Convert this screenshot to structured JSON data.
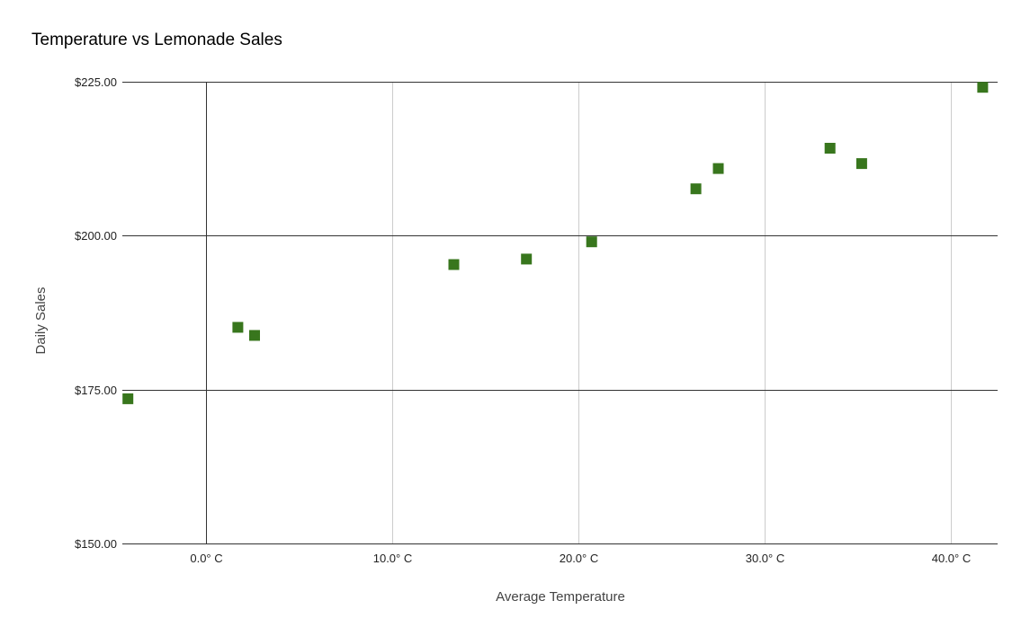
{
  "chart_data": {
    "type": "scatter",
    "title": "Temperature vs Lemonade Sales",
    "xlabel": "Average Temperature",
    "ylabel": "Daily Sales",
    "xlim": [
      -4.5,
      42.5
    ],
    "ylim": [
      150,
      225
    ],
    "x_ticks": [
      {
        "value": 0,
        "label": "0.0° C"
      },
      {
        "value": 10,
        "label": "10.0° C"
      },
      {
        "value": 20,
        "label": "20.0° C"
      },
      {
        "value": 30,
        "label": "30.0° C"
      },
      {
        "value": 40,
        "label": "40.0° C"
      }
    ],
    "y_ticks": [
      {
        "value": 150,
        "label": "$150.00"
      },
      {
        "value": 175,
        "label": "$175.00"
      },
      {
        "value": 200,
        "label": "$200.00"
      },
      {
        "value": 225,
        "label": "$225.00"
      }
    ],
    "grid": true,
    "marker": "square",
    "color": "#38761d",
    "points": [
      {
        "x": -4.2,
        "y": 173.5
      },
      {
        "x": 1.7,
        "y": 185.1
      },
      {
        "x": 2.6,
        "y": 183.8
      },
      {
        "x": 13.3,
        "y": 195.3
      },
      {
        "x": 17.2,
        "y": 196.2
      },
      {
        "x": 20.7,
        "y": 199.0
      },
      {
        "x": 26.3,
        "y": 207.6
      },
      {
        "x": 27.5,
        "y": 210.9
      },
      {
        "x": 33.5,
        "y": 214.2
      },
      {
        "x": 35.2,
        "y": 211.7
      },
      {
        "x": 41.7,
        "y": 224.1
      }
    ]
  }
}
